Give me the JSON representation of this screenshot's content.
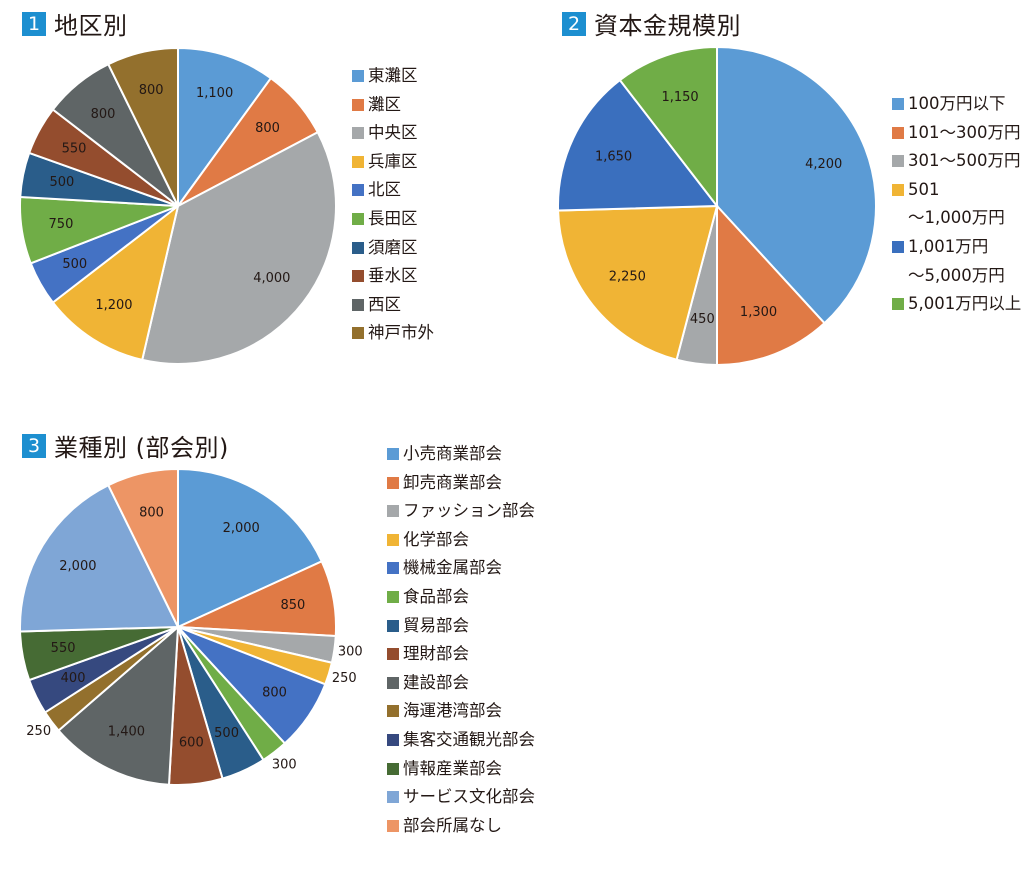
{
  "charts": [
    {
      "number": "1",
      "heading": "地区別",
      "chart_data": {
        "type": "pie",
        "categories": [
          "東灘区",
          "灘区",
          "中央区",
          "兵庫区",
          "北区",
          "長田区",
          "須磨区",
          "垂水区",
          "西区",
          "神戸市外"
        ],
        "values": [
          1100,
          800,
          4000,
          1200,
          500,
          750,
          500,
          550,
          800,
          800
        ],
        "value_labels": [
          "1,100",
          "800",
          "4,000",
          "1,200",
          "500",
          "750",
          "500",
          "550",
          "800",
          "800"
        ],
        "colors": [
          "#5b9bd5",
          "#e07a45",
          "#a5a8aa",
          "#f0b435",
          "#4472c4",
          "#70ad47",
          "#2a5d8a",
          "#944d2e",
          "#5f6566",
          "#93702d"
        ],
        "legend_position": "right"
      }
    },
    {
      "number": "2",
      "heading": "資本金規模別",
      "chart_data": {
        "type": "pie",
        "categories": [
          "100万円以下",
          "101～300万円",
          "301～500万円",
          "501\n～1,000万円",
          "1,001万円\n～5,000万円",
          "5,001万円以上"
        ],
        "values": [
          4200,
          1300,
          450,
          2250,
          1650,
          1150
        ],
        "value_labels": [
          "4,200",
          "1,300",
          "450",
          "2,250",
          "1,650",
          "1,150"
        ],
        "colors": [
          "#5b9bd5",
          "#e07a45",
          "#a5a8aa",
          "#f0b435",
          "#3a6fbe",
          "#70ad47"
        ],
        "legend_position": "right"
      }
    },
    {
      "number": "3",
      "heading": "業種別 (部会別)",
      "chart_data": {
        "type": "pie",
        "categories": [
          "小売商業部会",
          "卸売商業部会",
          "ファッション部会",
          "化学部会",
          "機械金属部会",
          "食品部会",
          "貿易部会",
          "理財部会",
          "建設部会",
          "海運港湾部会",
          "集客交通観光部会",
          "情報産業部会",
          "サービス文化部会",
          "部会所属なし"
        ],
        "values": [
          2000,
          850,
          300,
          250,
          800,
          300,
          500,
          600,
          1400,
          250,
          400,
          550,
          2000,
          800
        ],
        "value_labels": [
          "2,000",
          "850",
          "300",
          "250",
          "800",
          "300",
          "500",
          "600",
          "1,400",
          "250",
          "400",
          "550",
          "2,000",
          "800"
        ],
        "colors": [
          "#5b9bd5",
          "#e07a45",
          "#a5a8aa",
          "#f0b435",
          "#4472c4",
          "#70ad47",
          "#2a5d8a",
          "#944d2e",
          "#5f6566",
          "#93702d",
          "#36497f",
          "#466b34",
          "#7fa6d6",
          "#ed9565"
        ],
        "legend_position": "right"
      }
    }
  ]
}
